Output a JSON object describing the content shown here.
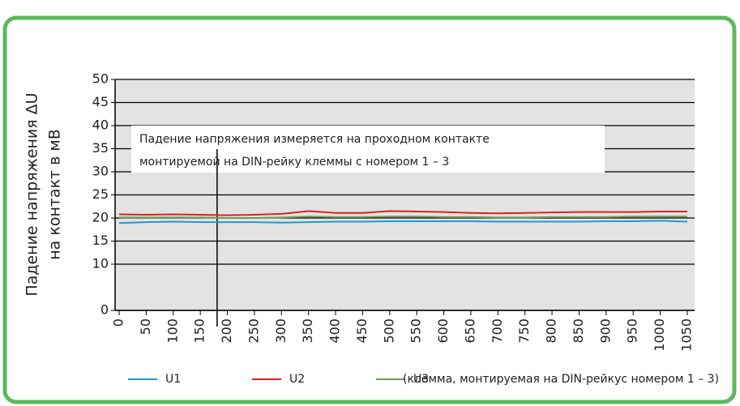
{
  "chart_data": {
    "type": "line",
    "ylabel": [
      "Падение напряжения ΔU",
      "на контакт в мВ"
    ],
    "annotation": [
      "Падение напряжения измеряется на проходном контакте",
      "монтируемой на DIN-рейку клеммы с номером 1 – 3"
    ],
    "note": "(клемма, монтируемая на DIN-рейкус номером 1 – 3)",
    "vertical_line_x": 181,
    "x": [
      0,
      50,
      100,
      150,
      200,
      250,
      300,
      350,
      400,
      450,
      500,
      550,
      600,
      650,
      700,
      750,
      800,
      850,
      900,
      950,
      1000,
      1050
    ],
    "series": [
      {
        "name": "U1",
        "color": "#1e9ad6",
        "values": [
          18.9,
          19.1,
          19.2,
          19.1,
          19.1,
          19.1,
          19.0,
          19.1,
          19.2,
          19.2,
          19.3,
          19.3,
          19.3,
          19.3,
          19.2,
          19.2,
          19.2,
          19.2,
          19.3,
          19.3,
          19.4,
          19.2
        ]
      },
      {
        "name": "U2",
        "color": "#e02020",
        "values": [
          20.8,
          20.7,
          20.8,
          20.7,
          20.6,
          20.7,
          20.9,
          21.5,
          21.1,
          21.1,
          21.5,
          21.4,
          21.3,
          21.1,
          21.0,
          21.1,
          21.2,
          21.3,
          21.3,
          21.3,
          21.4,
          21.4
        ]
      },
      {
        "name": "U3",
        "color": "#6f9a5a",
        "values": [
          20.1,
          20.1,
          20.1,
          20.1,
          20.0,
          20.0,
          20.1,
          20.3,
          20.2,
          20.2,
          20.3,
          20.3,
          20.2,
          20.2,
          20.1,
          20.1,
          20.2,
          20.2,
          20.2,
          20.3,
          20.3,
          20.3
        ]
      }
    ],
    "xlim": [
      -7.5,
      1063.5
    ],
    "xticks": [
      0,
      50,
      100,
      150,
      200,
      250,
      300,
      350,
      400,
      450,
      500,
      550,
      600,
      650,
      700,
      750,
      800,
      850,
      900,
      950,
      1000,
      1050
    ],
    "ylim": [
      0,
      50
    ],
    "yticks": [
      0,
      10,
      15,
      20,
      25,
      30,
      35,
      40,
      45,
      50
    ],
    "grid": true
  }
}
